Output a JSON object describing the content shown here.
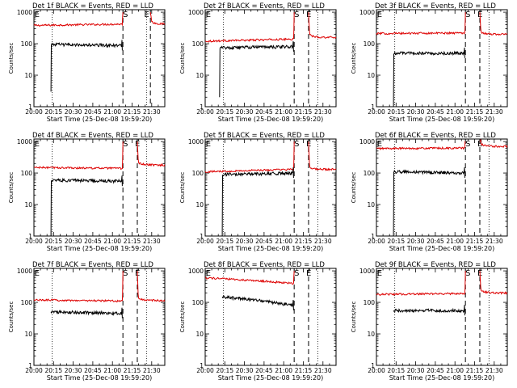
{
  "figure": {
    "common": {
      "xlabel": "Start Time (25-Dec-08 19:59:20)",
      "ylabel": "Counts/sec",
      "x_ticks": [
        "20:00",
        "20:15",
        "20:30",
        "20:45",
        "21:00",
        "21:15",
        "21:30"
      ],
      "y_ticks": [
        "1",
        "10",
        "100",
        "1000"
      ],
      "marker_s": "S",
      "marker_e": "E",
      "events_color": "#000000",
      "lld_color": "#dd0000"
    }
  },
  "chart_data": [
    {
      "type": "line",
      "title": "Det 1f BLACK = Events, RED = LLD",
      "x_unit": "minutes after 20:00",
      "xlim": [
        0,
        100
      ],
      "ylim": [
        1,
        1200
      ],
      "y_scale": "log",
      "dotted_lines": [
        14,
        86
      ],
      "dashed_lines": [
        68,
        89
      ],
      "marker_e_x": 0.5,
      "marker_s_x": 68,
      "marker_e2_x": 86,
      "lld": {
        "start": 0,
        "end": 100,
        "base": 380,
        "end_base": 420,
        "spike": 1000,
        "post": 420
      },
      "events": {
        "start": 13,
        "end": 67,
        "base": 95,
        "end_base": 88,
        "start_low": 3
      },
      "series": [
        {
          "name": "BLACK = Events",
          "color": "#000000"
        },
        {
          "name": "RED = LLD",
          "color": "#dd0000"
        }
      ]
    },
    {
      "type": "line",
      "title": "Det 2f BLACK = Events, RED = LLD",
      "x_unit": "minutes after 20:00",
      "xlim": [
        0,
        100
      ],
      "ylim": [
        1,
        1200
      ],
      "y_scale": "log",
      "dotted_lines": [
        14,
        86
      ],
      "dashed_lines": [
        68,
        79
      ],
      "marker_e_x": 0.5,
      "marker_s_x": 68,
      "marker_e2_x": 79,
      "lld": {
        "start": 0,
        "end": 100,
        "base": 120,
        "end_base": 140,
        "spike": 1000,
        "post": 160
      },
      "events": {
        "start": 11,
        "end": 67,
        "base": 75,
        "end_base": 80,
        "start_low": 2
      },
      "series": [
        {
          "name": "BLACK = Events",
          "color": "#000000"
        },
        {
          "name": "RED = LLD",
          "color": "#dd0000"
        }
      ]
    },
    {
      "type": "line",
      "title": "Det 3f BLACK = Events, RED = LLD",
      "x_unit": "minutes after 20:00",
      "xlim": [
        0,
        100
      ],
      "ylim": [
        1,
        1200
      ],
      "y_scale": "log",
      "dotted_lines": [
        14,
        86
      ],
      "dashed_lines": [
        68,
        79
      ],
      "marker_e_x": 0.5,
      "marker_s_x": 68,
      "marker_e2_x": 79,
      "lld": {
        "start": 0,
        "end": 100,
        "base": 210,
        "end_base": 220,
        "spike": 1000,
        "post": 200
      },
      "events": {
        "start": 13,
        "end": 67,
        "base": 50,
        "end_base": 50,
        "start_low": 1
      },
      "series": [
        {
          "name": "BLACK = Events",
          "color": "#000000"
        },
        {
          "name": "RED = LLD",
          "color": "#dd0000"
        }
      ]
    },
    {
      "type": "line",
      "title": "Det 4f BLACK = Events, RED = LLD",
      "x_unit": "minutes after 20:00",
      "xlim": [
        0,
        100
      ],
      "ylim": [
        1,
        1200
      ],
      "y_scale": "log",
      "dotted_lines": [
        14,
        86
      ],
      "dashed_lines": [
        68,
        79
      ],
      "marker_e_x": 0.5,
      "marker_s_x": 68,
      "marker_e2_x": 79,
      "lld": {
        "start": 0,
        "end": 100,
        "base": 150,
        "end_base": 140,
        "spike": 1000,
        "post": 180
      },
      "events": {
        "start": 13,
        "end": 67,
        "base": 60,
        "end_base": 55,
        "start_low": 1
      },
      "series": [
        {
          "name": "BLACK = Events",
          "color": "#000000"
        },
        {
          "name": "RED = LLD",
          "color": "#dd0000"
        }
      ]
    },
    {
      "type": "line",
      "title": "Det 5f BLACK = Events, RED = LLD",
      "x_unit": "minutes after 20:00",
      "xlim": [
        0,
        100
      ],
      "ylim": [
        1,
        1200
      ],
      "y_scale": "log",
      "dotted_lines": [
        14,
        86
      ],
      "dashed_lines": [
        68,
        79
      ],
      "marker_e_x": 0.5,
      "marker_s_x": 68,
      "marker_e2_x": 79,
      "lld": {
        "start": 0,
        "end": 100,
        "base": 110,
        "end_base": 130,
        "spike": 1000,
        "post": 130
      },
      "events": {
        "start": 13,
        "end": 67,
        "base": 90,
        "end_base": 100,
        "start_low": 1
      },
      "series": [
        {
          "name": "BLACK = Events",
          "color": "#000000"
        },
        {
          "name": "RED = LLD",
          "color": "#dd0000"
        }
      ]
    },
    {
      "type": "line",
      "title": "Det 6f BLACK = Events, RED = LLD",
      "x_unit": "minutes after 20:00",
      "xlim": [
        0,
        100
      ],
      "ylim": [
        1,
        1200
      ],
      "y_scale": "log",
      "dotted_lines": [
        14,
        86
      ],
      "dashed_lines": [
        68,
        79
      ],
      "marker_e_x": 0.5,
      "marker_s_x": 68,
      "marker_e2_x": 79,
      "lld": {
        "start": 0,
        "end": 100,
        "base": 600,
        "end_base": 620,
        "spike": 1000,
        "post": 700
      },
      "events": {
        "start": 13,
        "end": 67,
        "base": 110,
        "end_base": 100,
        "start_low": 1
      },
      "series": [
        {
          "name": "BLACK = Events",
          "color": "#000000"
        },
        {
          "name": "RED = LLD",
          "color": "#dd0000"
        }
      ]
    },
    {
      "type": "line",
      "title": "Det 7f BLACK = Events, RED = LLD",
      "x_unit": "minutes after 20:00",
      "xlim": [
        0,
        100
      ],
      "ylim": [
        1,
        1200
      ],
      "y_scale": "log",
      "dotted_lines": [
        14,
        86
      ],
      "dashed_lines": [
        68,
        79
      ],
      "marker_e_x": 0.5,
      "marker_s_x": 68,
      "marker_e2_x": 79,
      "lld": {
        "start": 0,
        "end": 100,
        "base": 120,
        "end_base": 110,
        "spike": 1000,
        "post": 115
      },
      "events": {
        "start": 13,
        "end": 67,
        "base": 50,
        "end_base": 45,
        "start_low": 50
      },
      "series": [
        {
          "name": "BLACK = Events",
          "color": "#000000"
        },
        {
          "name": "RED = LLD",
          "color": "#dd0000"
        }
      ]
    },
    {
      "type": "line",
      "title": "Det 8f BLACK = Events, RED = LLD",
      "x_unit": "minutes after 20:00",
      "xlim": [
        0,
        100
      ],
      "ylim": [
        1,
        1200
      ],
      "y_scale": "log",
      "dotted_lines": [
        14,
        86
      ],
      "dashed_lines": [
        68,
        79
      ],
      "marker_e_x": 0.5,
      "marker_s_x": 68,
      "marker_e2_x": 79,
      "lld": {
        "start": 0,
        "end": 68,
        "base": 600,
        "end_base": 400,
        "spike": 1000,
        "post": null
      },
      "events": {
        "start": 13,
        "end": 67,
        "base": 150,
        "end_base": 80,
        "start_low": 150
      },
      "series": [
        {
          "name": "BLACK = Events",
          "color": "#000000"
        },
        {
          "name": "RED = LLD",
          "color": "#dd0000"
        }
      ]
    },
    {
      "type": "line",
      "title": "Det 9f BLACK = Events, RED = LLD",
      "x_unit": "minutes after 20:00",
      "xlim": [
        0,
        100
      ],
      "ylim": [
        1,
        1200
      ],
      "y_scale": "log",
      "dotted_lines": [
        14,
        86
      ],
      "dashed_lines": [
        68,
        79
      ],
      "marker_e_x": 0.5,
      "marker_s_x": 68,
      "marker_e2_x": 79,
      "lld": {
        "start": 0,
        "end": 100,
        "base": 180,
        "end_base": 190,
        "spike": 1000,
        "post": 200
      },
      "events": {
        "start": 13,
        "end": 67,
        "base": 55,
        "end_base": 55,
        "start_low": 55
      },
      "series": [
        {
          "name": "BLACK = Events",
          "color": "#000000"
        },
        {
          "name": "RED = LLD",
          "color": "#dd0000"
        }
      ]
    }
  ]
}
